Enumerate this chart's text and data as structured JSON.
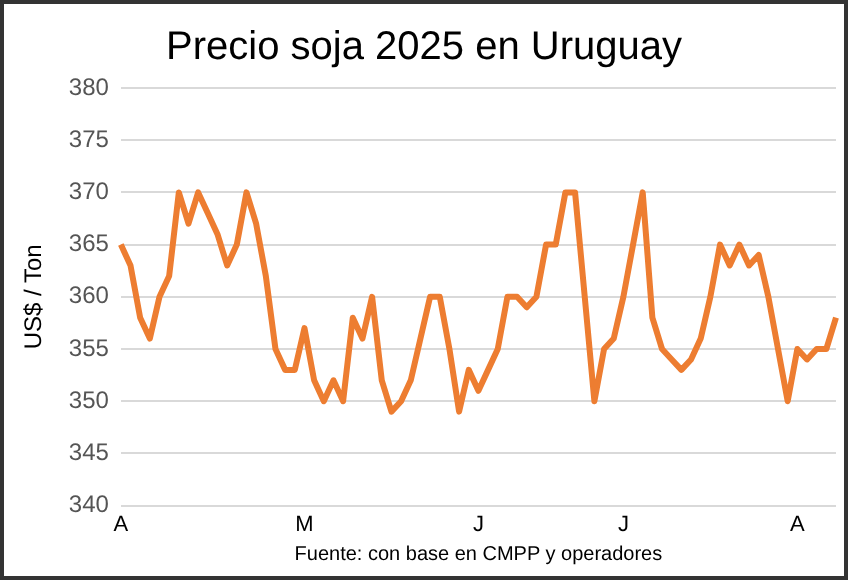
{
  "chart_data": {
    "type": "line",
    "title": "Precio soja 2025 en Uruguay",
    "ylabel": "US$ / Ton",
    "categories": [
      "A",
      null,
      null,
      null,
      null,
      null,
      null,
      null,
      null,
      null,
      null,
      null,
      null,
      null,
      null,
      null,
      null,
      null,
      null,
      "M",
      null,
      null,
      null,
      null,
      null,
      null,
      null,
      null,
      null,
      null,
      null,
      null,
      null,
      null,
      null,
      null,
      null,
      "J",
      null,
      null,
      null,
      null,
      null,
      null,
      null,
      null,
      null,
      null,
      null,
      null,
      null,
      null,
      "J",
      null,
      null,
      null,
      null,
      null,
      null,
      null,
      null,
      null,
      null,
      null,
      null,
      null,
      null,
      null,
      null,
      null,
      "A",
      null,
      null,
      null,
      null
    ],
    "series": [
      {
        "color": "#ed7d31",
        "values": [
          365,
          363,
          358,
          356,
          360,
          362,
          370,
          367,
          370,
          368,
          366,
          363,
          365,
          370,
          367,
          362,
          355,
          353,
          353,
          357,
          352,
          350,
          352,
          350,
          358,
          356,
          360,
          352,
          349,
          350,
          352,
          356,
          360,
          360,
          355,
          349,
          353,
          351,
          353,
          355,
          360,
          360,
          359,
          360,
          365,
          365,
          370,
          370,
          360,
          350,
          355,
          356,
          360,
          365,
          370,
          358,
          355,
          354,
          353,
          354,
          356,
          360,
          365,
          363,
          365,
          363,
          364,
          360,
          355,
          350,
          355,
          354,
          355,
          355,
          358
        ]
      }
    ],
    "ylim": [
      340,
      380
    ],
    "yticks": [
      340,
      345,
      350,
      355,
      360,
      365,
      370,
      375,
      380
    ],
    "grid": "y",
    "legend": false,
    "marker": "none",
    "line_style": "solid",
    "annotations": [
      "Fuente: con base en CMPP y operadores"
    ]
  }
}
